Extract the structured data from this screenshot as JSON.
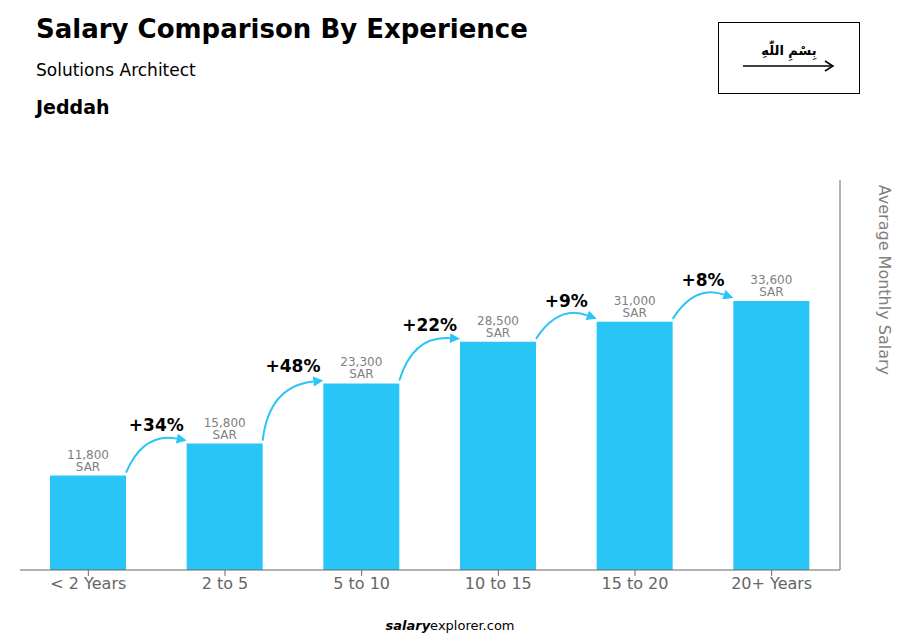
{
  "chart_data": {
    "type": "bar",
    "title": "Salary Comparison By Experience",
    "subtitle": "Solutions Architect",
    "city": "Jeddah",
    "flag_text": "بِسْمِ اللّٰهِ",
    "watermark": [
      "salary",
      "explorer.com"
    ],
    "ylabel": "Average Monthly Salary",
    "categories": [
      "< 2 Years",
      "2 to 5",
      "5 to 10",
      "10 to 15",
      "15 to 20",
      "20+ Years"
    ],
    "values": [
      11800,
      15800,
      23300,
      28500,
      31000,
      33600
    ],
    "value_labels": [
      "11,800 SAR",
      "15,800 SAR",
      "23,300 SAR",
      "28,500 SAR",
      "31,000 SAR",
      "33,600 SAR"
    ],
    "data_labels": true,
    "change_labels": [
      "+34%",
      "+48%",
      "+22%",
      "+9%",
      "+8%"
    ],
    "color": "#29c5f6",
    "ylim": [
      0,
      48720
    ],
    "tick_labels": "x"
  }
}
